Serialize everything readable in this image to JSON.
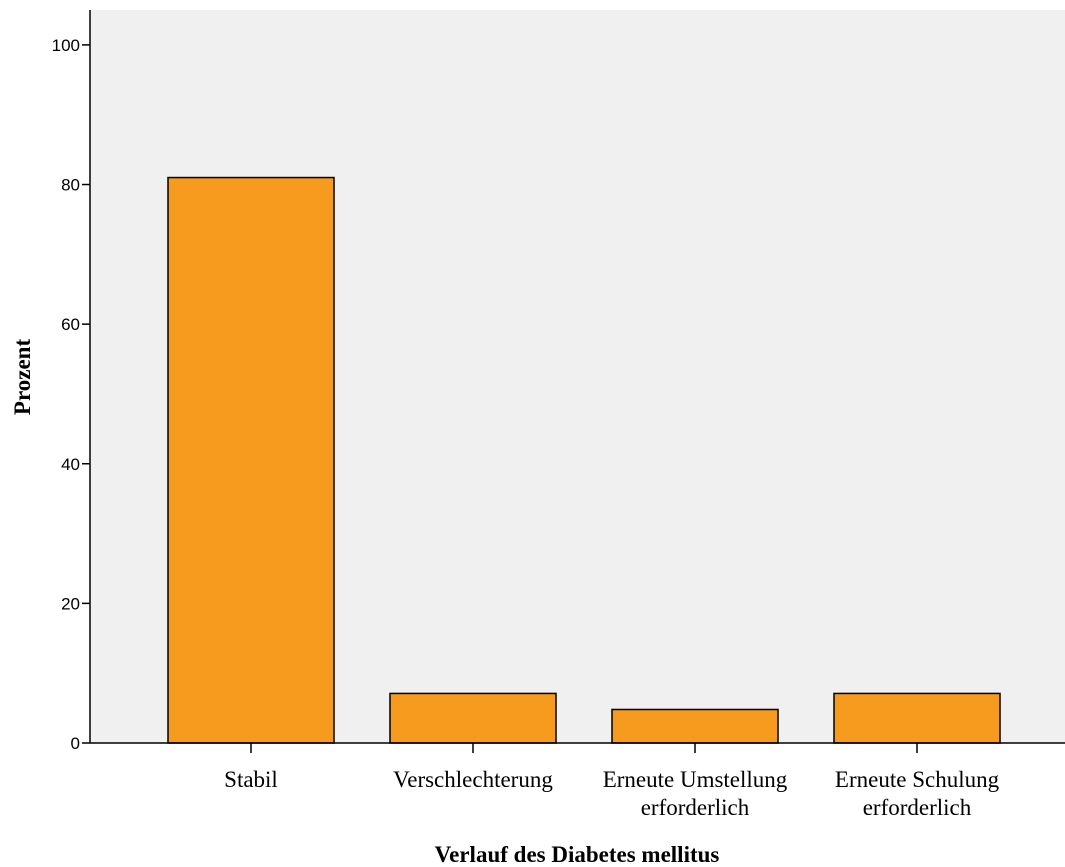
{
  "chart_data": {
    "type": "bar",
    "categories": [
      [
        "Stabil"
      ],
      [
        "Verschlechterung"
      ],
      [
        "Erneute Umstellung",
        "erforderlich"
      ],
      [
        "Erneute Schulung",
        "erforderlich"
      ]
    ],
    "values": [
      81,
      7.1,
      4.8,
      7.1
    ],
    "xlabel": "Verlauf des Diabetes mellitus",
    "ylabel": "Prozent",
    "ylim": [
      0,
      105
    ],
    "yticks": [
      0,
      20,
      40,
      60,
      80,
      100
    ],
    "grid": false,
    "colors": {
      "bar_fill": "#f79b1e",
      "bar_stroke": "#000000",
      "plot_background": "#f0f0f0"
    }
  }
}
